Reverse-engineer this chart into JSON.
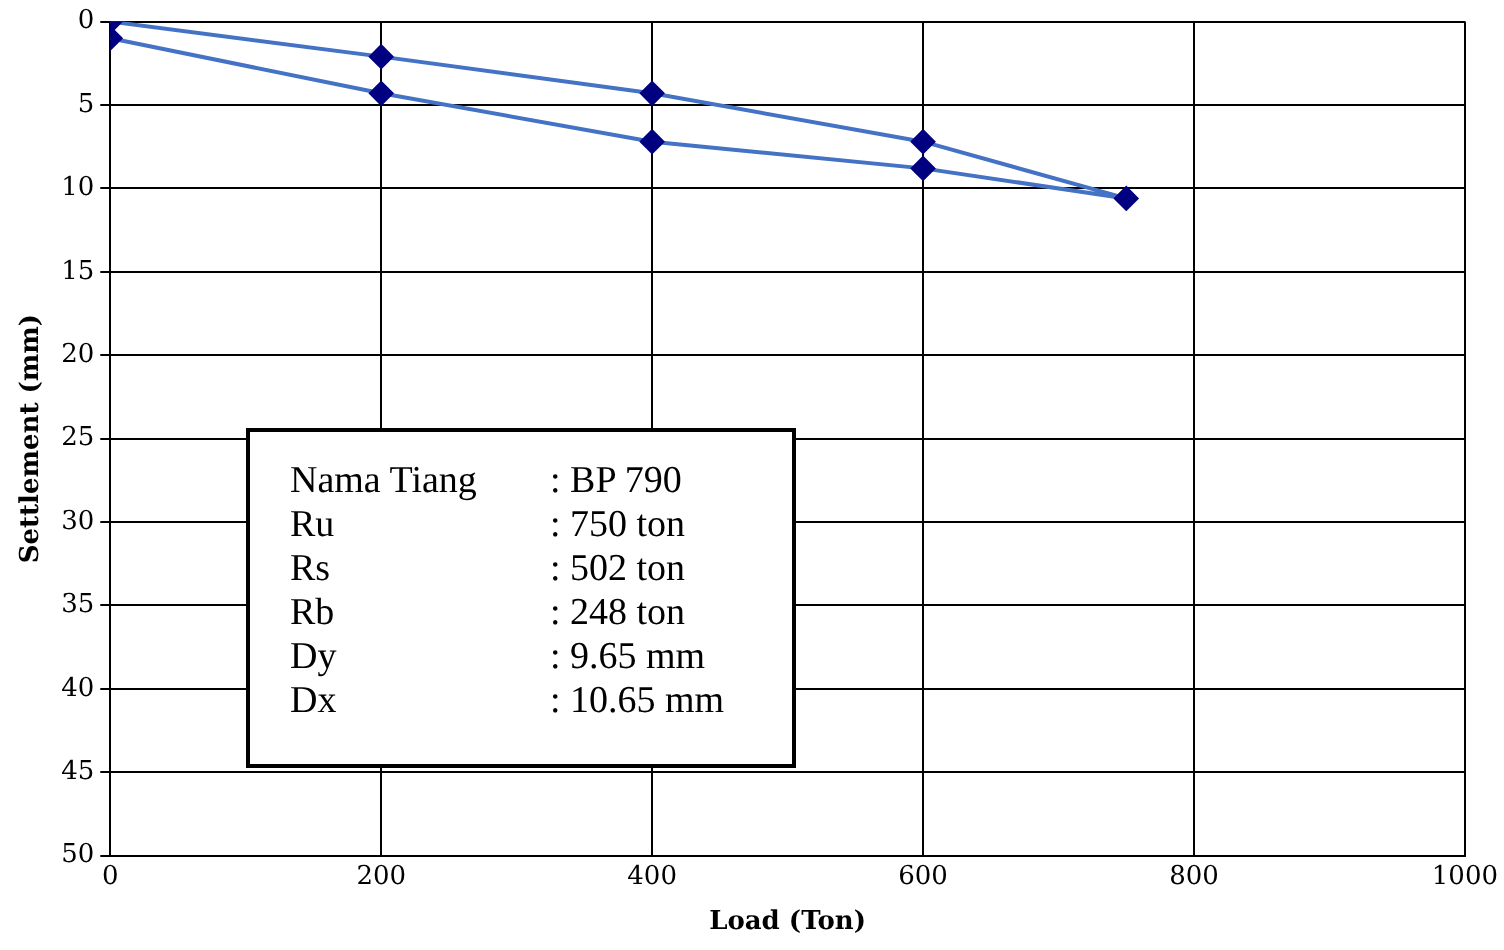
{
  "chart_data": {
    "type": "line",
    "xlabel": "Load (Ton)",
    "ylabel": "Settlement (mm)",
    "x": [
      0,
      200,
      400,
      600,
      750,
      600,
      400,
      200,
      0
    ],
    "series": [
      {
        "color": "#4472c4",
        "values": [
          0,
          2.1,
          4.3,
          7.2,
          10.6,
          8.8,
          7.2,
          4.3,
          1.0
        ]
      }
    ],
    "marker": "diamond",
    "xlim": [
      0,
      1000
    ],
    "xticks": [
      0,
      200,
      400,
      600,
      800,
      1000
    ],
    "ylim": [
      50,
      0
    ],
    "yticks": [
      0,
      5,
      10,
      15,
      20,
      25,
      30,
      35,
      40,
      45,
      50
    ],
    "grid": true,
    "legend": false,
    "annotations": [
      "Nama Tiang : BP 790",
      "Ru : 750 ton",
      "Rs : 502 ton",
      "Rb : 248 ton",
      "Dy : 9.65 mm",
      "Dx : 10.65 mm"
    ]
  }
}
